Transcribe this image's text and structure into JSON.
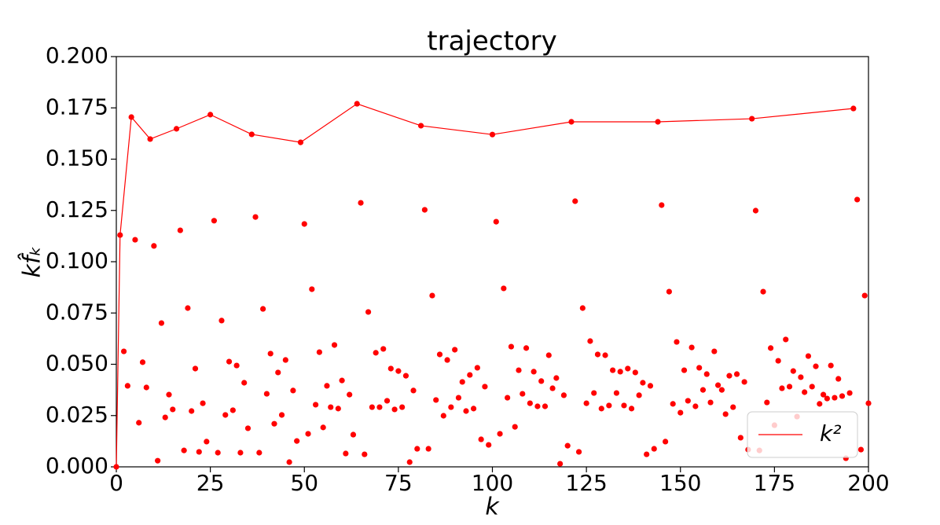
{
  "chart_data": {
    "type": "scatter",
    "title": "trajectory",
    "xlabel": "k",
    "ylabel": "kf̂ₖ",
    "xlim": [
      0,
      200
    ],
    "ylim": [
      0,
      0.2
    ],
    "xticks": [
      0,
      25,
      50,
      75,
      100,
      125,
      150,
      175,
      200
    ],
    "yticks": [
      {
        "value": 0,
        "label": "0.000"
      },
      {
        "value": 0.025,
        "label": "0.025"
      },
      {
        "value": 0.05,
        "label": "0.050"
      },
      {
        "value": 0.075,
        "label": "0.075"
      },
      {
        "value": 0.1,
        "label": "0.100"
      },
      {
        "value": 0.125,
        "label": "0.125"
      },
      {
        "value": 0.15,
        "label": "0.150"
      },
      {
        "value": 0.175,
        "label": "0.175"
      },
      {
        "value": 0.2,
        "label": "0.200"
      }
    ],
    "legend_position": "lower right",
    "series": [
      {
        "color": "#ff0000",
        "x": [
          0,
          1,
          2,
          3,
          4,
          5,
          6,
          7,
          8,
          9,
          10,
          11,
          12,
          13,
          14,
          15,
          16,
          17,
          18,
          19,
          20,
          21,
          22,
          23,
          24,
          25,
          26,
          27,
          28,
          29,
          30,
          31,
          32,
          33,
          34,
          35,
          36,
          37,
          38,
          39,
          40,
          41,
          42,
          43,
          44,
          45,
          46,
          47,
          48,
          49,
          50,
          51,
          52,
          53,
          54,
          55,
          56,
          57,
          58,
          59,
          60,
          61,
          62,
          63,
          64,
          65,
          66,
          67,
          68,
          69,
          70,
          71,
          72,
          73,
          74,
          75,
          76,
          77,
          78,
          79,
          80,
          81,
          82,
          83,
          84,
          85,
          86,
          87,
          88,
          89,
          90,
          91,
          92,
          93,
          94,
          95,
          96,
          97,
          98,
          99,
          100,
          101,
          102,
          103,
          104,
          105,
          106,
          107,
          108,
          109,
          110,
          111,
          112,
          113,
          114,
          115,
          116,
          117,
          118,
          119,
          120,
          121,
          122,
          123,
          124,
          125,
          126,
          127,
          128,
          129,
          130,
          131,
          132,
          133,
          134,
          135,
          136,
          137,
          138,
          139,
          140,
          141,
          142,
          143,
          144,
          145,
          146,
          147,
          148,
          149,
          150,
          151,
          152,
          153,
          154,
          155,
          156,
          157,
          158,
          159,
          160,
          161,
          162,
          163,
          164,
          165,
          166,
          167,
          168,
          169,
          170,
          171,
          172,
          173,
          174,
          175,
          176,
          177,
          178,
          179,
          180,
          181,
          182,
          183,
          184,
          185,
          186,
          187,
          188,
          189,
          190,
          191,
          192,
          193,
          194,
          195,
          196,
          197,
          198,
          199,
          200
        ],
        "values": [
          0,
          0.113,
          0.0563,
          0.0395,
          0.1705,
          0.1107,
          0.0215,
          0.051,
          0.0387,
          0.1598,
          0.1077,
          0.003,
          0.0701,
          0.0241,
          0.0352,
          0.028,
          0.1648,
          0.1153,
          0.008,
          0.0774,
          0.0272,
          0.0479,
          0.0073,
          0.031,
          0.0123,
          0.1717,
          0.12,
          0.0069,
          0.0713,
          0.0253,
          0.0513,
          0.0276,
          0.0494,
          0.0069,
          0.041,
          0.0188,
          0.1621,
          0.1218,
          0.0069,
          0.077,
          0.0356,
          0.0552,
          0.021,
          0.046,
          0.0253,
          0.0521,
          0.0023,
          0.0372,
          0.0126,
          0.1582,
          0.1184,
          0.0161,
          0.0866,
          0.0303,
          0.0559,
          0.0192,
          0.0395,
          0.0291,
          0.0594,
          0.0284,
          0.0421,
          0.0065,
          0.0352,
          0.0157,
          0.177,
          0.1287,
          0.0061,
          0.0755,
          0.0291,
          0.0556,
          0.0291,
          0.0575,
          0.0322,
          0.0479,
          0.028,
          0.0467,
          0.0291,
          0.0444,
          0.0023,
          0.0372,
          0.0088,
          0.1663,
          0.1253,
          0.0088,
          0.0835,
          0.0326,
          0.0548,
          0.0249,
          0.0521,
          0.0291,
          0.0571,
          0.0337,
          0.0414,
          0.0272,
          0.0448,
          0.0284,
          0.0483,
          0.0134,
          0.0391,
          0.0107,
          0.162,
          0.1195,
          0.0161,
          0.087,
          0.0337,
          0.0586,
          0.0195,
          0.0471,
          0.0356,
          0.0579,
          0.031,
          0.0464,
          0.0295,
          0.0418,
          0.0295,
          0.0544,
          0.0383,
          0.0433,
          0.0015,
          0.0349,
          0.0103,
          0.1682,
          0.1295,
          0.0073,
          0.0774,
          0.031,
          0.0613,
          0.036,
          0.0548,
          0.0284,
          0.0544,
          0.0299,
          0.0471,
          0.036,
          0.0464,
          0.0299,
          0.0479,
          0.0284,
          0.046,
          0.0349,
          0.041,
          0.0061,
          0.0395,
          0.0088,
          0.1682,
          0.1276,
          0.0123,
          0.0854,
          0.0307,
          0.0609,
          0.0264,
          0.0471,
          0.0322,
          0.0582,
          0.0295,
          0.0483,
          0.0375,
          0.0452,
          0.0314,
          0.0563,
          0.0398,
          0.0375,
          0.0257,
          0.0444,
          0.0291,
          0.0452,
          0.0142,
          0.0414,
          0.0084,
          0.1697,
          0.1249,
          0.008,
          0.0854,
          0.0314,
          0.0579,
          0.0203,
          0.0517,
          0.0383,
          0.0621,
          0.0391,
          0.0467,
          0.0245,
          0.0437,
          0.0364,
          0.054,
          0.0391,
          0.049,
          0.0307,
          0.0352,
          0.0333,
          0.0494,
          0.0337,
          0.0429,
          0.0345,
          0.0042,
          0.036,
          0.1747,
          0.1303,
          0.0084,
          0.0835,
          0.031
        ]
      },
      {
        "name": "k²",
        "color": "#ff0000",
        "line": true,
        "x": [
          0,
          1,
          4,
          9,
          16,
          25,
          36,
          49,
          64,
          81,
          100,
          121,
          144,
          169,
          196
        ],
        "values": [
          0,
          0.113,
          0.1705,
          0.1598,
          0.1648,
          0.1717,
          0.1621,
          0.1582,
          0.177,
          0.1663,
          0.162,
          0.1682,
          0.1682,
          0.1697,
          0.1747
        ]
      }
    ]
  }
}
